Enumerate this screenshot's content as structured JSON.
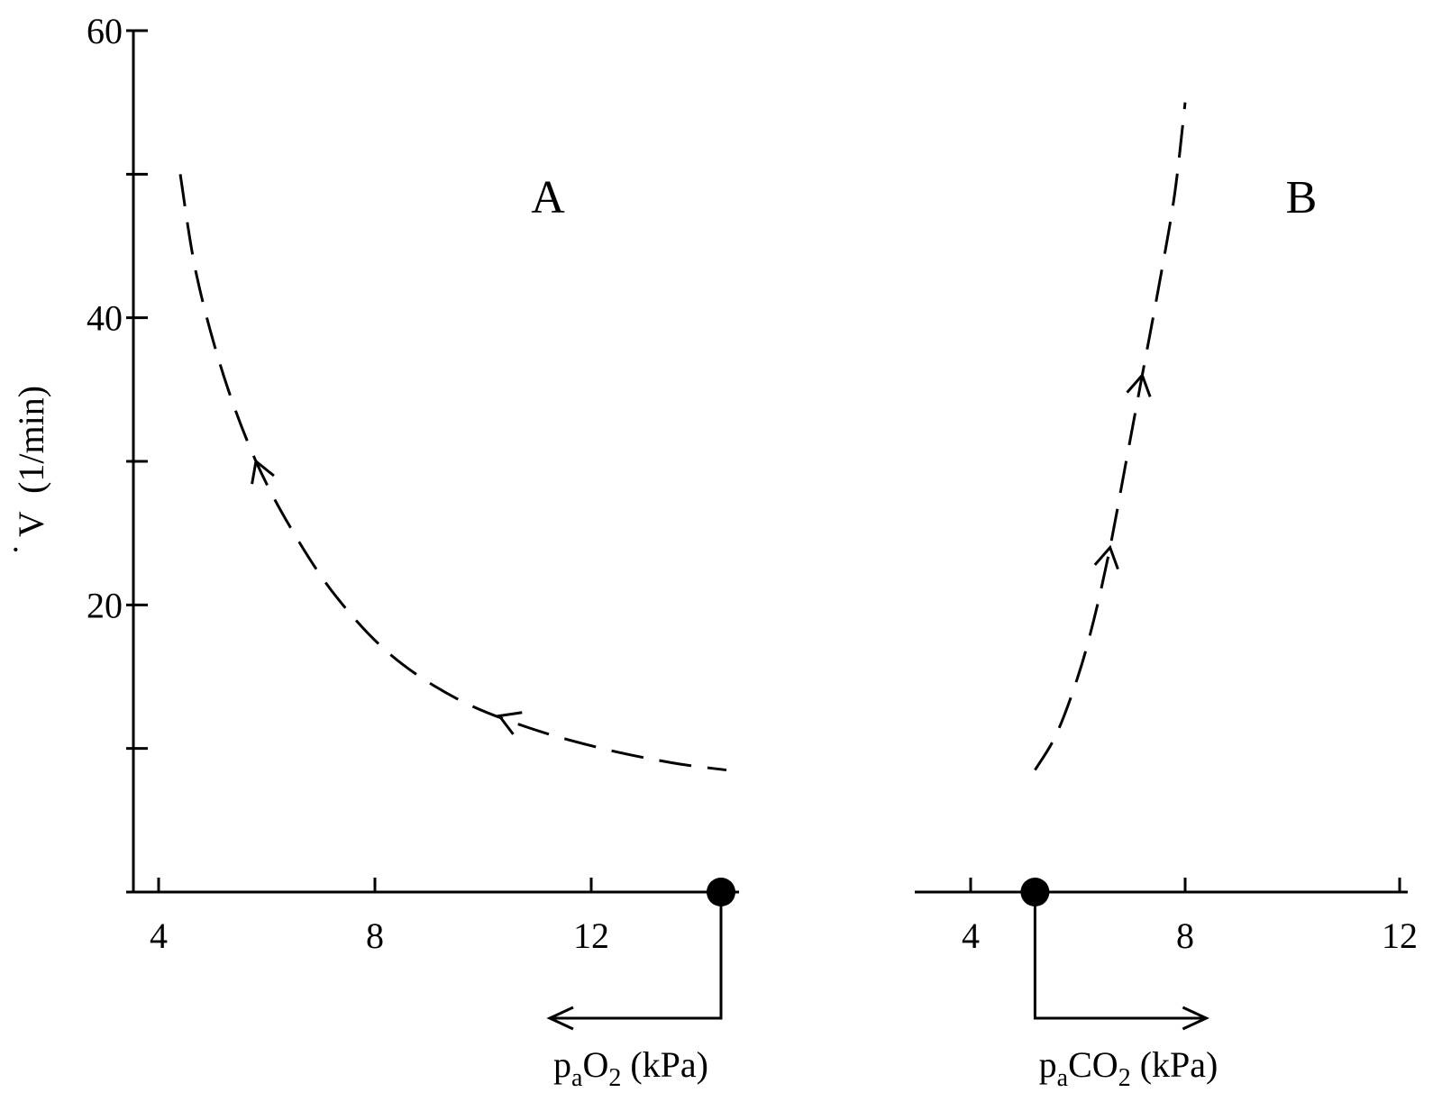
{
  "chart_data": [
    {
      "type": "line",
      "panel": "A",
      "ylabel_parts": {
        "mark": "˙",
        "symbol": "V",
        "unit": "(1/min)"
      },
      "xlabel_parts": {
        "p": "p",
        "sub_a": "a",
        "gas": "O",
        "sub_n": "2",
        "unit": "(kPa)"
      },
      "ylim": [
        0,
        60
      ],
      "yticks": [
        0,
        10,
        20,
        30,
        40,
        50,
        60
      ],
      "ytick_labels": [
        "20",
        "40",
        "60"
      ],
      "ytick_label_values": [
        20,
        40,
        60
      ],
      "xlim": [
        4,
        14.5
      ],
      "xticks": [
        4,
        8,
        12
      ],
      "xtick_labels": [
        "4",
        "8",
        "12"
      ],
      "series": [
        {
          "style": "dashed",
          "direction": "decreasing x",
          "x": [
            4.4,
            4.7,
            5.2,
            5.8,
            6.5,
            7.3,
            8.3,
            9.5,
            10.8,
            12.2,
            13.5,
            14.5
          ],
          "y": [
            50,
            43,
            36,
            30,
            25,
            20.5,
            16.5,
            13.5,
            11.5,
            10,
            9,
            8.5
          ],
          "arrow_at_x": [
            5.8,
            10.3
          ]
        }
      ],
      "marker": {
        "x": 14.4,
        "y": 0
      },
      "direction_arrow": "left"
    },
    {
      "type": "line",
      "panel": "B",
      "xlabel_parts": {
        "p": "p",
        "sub_a": "a",
        "gas": "CO",
        "sub_n": "2",
        "unit": "(kPa)"
      },
      "ylim": [
        0,
        60
      ],
      "xlim": [
        4,
        12
      ],
      "xticks": [
        4,
        8,
        12
      ],
      "xtick_labels": [
        "4",
        "8",
        "12"
      ],
      "series": [
        {
          "style": "dashed",
          "direction": "increasing x",
          "x": [
            5.2,
            5.6,
            6.0,
            6.3,
            6.6,
            6.9,
            7.2,
            7.5,
            7.8,
            8.0
          ],
          "y": [
            8.5,
            11,
            15,
            19,
            24,
            30,
            36,
            42,
            48.5,
            55
          ],
          "arrow_at_x": [
            6.6,
            7.2
          ]
        }
      ],
      "marker": {
        "x": 5.2,
        "y": 0
      },
      "direction_arrow": "right"
    }
  ]
}
